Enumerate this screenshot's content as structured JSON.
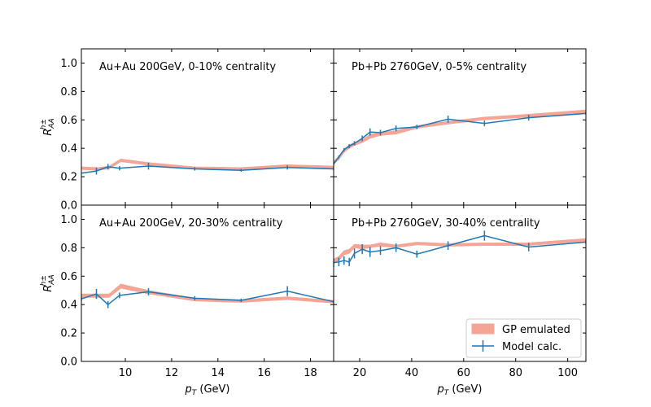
{
  "chart_data": {
    "type": "line",
    "ylabel_base": "R",
    "ylabel_sub": "AA",
    "ylabel_sup": "h±",
    "yticks": [
      "0.0",
      "0.2",
      "0.4",
      "0.6",
      "0.8",
      "1.0"
    ],
    "ylim": [
      0,
      1.1
    ],
    "legend": {
      "placement": "lower-right",
      "gp_label": "GP emulated",
      "model_label": "Model calc."
    },
    "colors": {
      "gp_band": "#f4a595",
      "model_line": "#1f77b4"
    },
    "columns": [
      {
        "xlabel_p": "p",
        "xlabel_sub": "T",
        "xlabel_unit": " (GeV)",
        "xlim": [
          8.1,
          19.0
        ],
        "xticks": [
          10,
          12,
          14,
          16,
          18
        ]
      },
      {
        "xlabel_p": "p",
        "xlabel_sub": "T",
        "xlabel_unit": " (GeV)",
        "xlim": [
          10,
          107
        ],
        "xticks": [
          20,
          40,
          60,
          80,
          100
        ]
      }
    ],
    "panels": [
      {
        "title": "Au+Au 200GeV, 0-10% centrality",
        "col": 0,
        "row": 0,
        "gp": {
          "x": [
            8.1,
            8.8,
            9.3,
            9.8,
            11,
            13,
            15,
            17,
            19
          ],
          "lo": [
            0.25,
            0.245,
            0.255,
            0.305,
            0.28,
            0.255,
            0.25,
            0.265,
            0.255
          ],
          "hi": [
            0.27,
            0.265,
            0.275,
            0.325,
            0.3,
            0.27,
            0.265,
            0.285,
            0.275
          ]
        },
        "model": {
          "x": [
            8.1,
            8.75,
            9.25,
            9.75,
            11,
            13,
            15,
            17,
            19
          ],
          "y": [
            0.225,
            0.24,
            0.27,
            0.26,
            0.275,
            0.255,
            0.245,
            0.265,
            0.255
          ],
          "err": [
            0,
            0.025,
            0.02,
            0.015,
            0.025,
            0.012,
            0.01,
            0.015,
            0.01
          ]
        }
      },
      {
        "title": "Pb+Pb 2760GeV, 0-5% centrality",
        "col": 1,
        "row": 0,
        "gp": {
          "x": [
            10,
            12,
            14,
            16,
            18,
            21,
            24,
            28,
            34,
            42,
            54,
            68,
            85,
            107
          ],
          "lo": [
            0.29,
            0.32,
            0.37,
            0.4,
            0.42,
            0.44,
            0.47,
            0.49,
            0.5,
            0.54,
            0.57,
            0.6,
            0.62,
            0.65
          ],
          "hi": [
            0.31,
            0.345,
            0.395,
            0.425,
            0.44,
            0.46,
            0.5,
            0.51,
            0.525,
            0.56,
            0.59,
            0.62,
            0.64,
            0.67
          ]
        },
        "model": {
          "x": [
            10,
            12,
            14,
            16,
            18,
            21,
            24,
            28,
            34,
            42,
            54,
            68,
            85,
            107
          ],
          "y": [
            0.29,
            0.34,
            0.39,
            0.415,
            0.435,
            0.47,
            0.515,
            0.51,
            0.54,
            0.55,
            0.605,
            0.575,
            0.615,
            0.645
          ],
          "err": [
            0.01,
            0.01,
            0.012,
            0.015,
            0.015,
            0.02,
            0.025,
            0.02,
            0.02,
            0.015,
            0.025,
            0.02,
            0.02,
            0.01
          ]
        }
      },
      {
        "title": "Au+Au 200GeV, 20-30% centrality",
        "col": 0,
        "row": 1,
        "gp": {
          "x": [
            8.1,
            8.8,
            9.3,
            9.8,
            11,
            13,
            15,
            17,
            19
          ],
          "lo": [
            0.45,
            0.45,
            0.45,
            0.515,
            0.475,
            0.425,
            0.415,
            0.435,
            0.41
          ],
          "hi": [
            0.475,
            0.475,
            0.475,
            0.545,
            0.5,
            0.445,
            0.435,
            0.455,
            0.43
          ]
        },
        "model": {
          "x": [
            8.1,
            8.75,
            9.25,
            9.75,
            11,
            13,
            15,
            17,
            19
          ],
          "y": [
            0.44,
            0.475,
            0.4,
            0.465,
            0.49,
            0.445,
            0.43,
            0.495,
            0.42
          ],
          "err": [
            0.015,
            0.035,
            0.025,
            0.02,
            0.025,
            0.015,
            0.012,
            0.035,
            0.01
          ]
        }
      },
      {
        "title": "Pb+Pb 2760GeV, 30-40% centrality",
        "col": 1,
        "row": 1,
        "gp": {
          "x": [
            10,
            12,
            14,
            16,
            18,
            21,
            24,
            28,
            34,
            42,
            54,
            68,
            85,
            107
          ],
          "lo": [
            0.69,
            0.71,
            0.75,
            0.76,
            0.8,
            0.79,
            0.8,
            0.81,
            0.8,
            0.82,
            0.81,
            0.815,
            0.815,
            0.845
          ],
          "hi": [
            0.72,
            0.74,
            0.78,
            0.79,
            0.825,
            0.82,
            0.82,
            0.835,
            0.82,
            0.84,
            0.83,
            0.835,
            0.835,
            0.865
          ]
        },
        "model": {
          "x": [
            10,
            12,
            14,
            16,
            18,
            21,
            24,
            28,
            34,
            42,
            54,
            68,
            85,
            107
          ],
          "y": [
            0.695,
            0.7,
            0.71,
            0.7,
            0.76,
            0.79,
            0.77,
            0.78,
            0.8,
            0.755,
            0.815,
            0.885,
            0.805,
            0.84
          ],
          "err": [
            0.03,
            0.03,
            0.03,
            0.03,
            0.035,
            0.035,
            0.035,
            0.03,
            0.03,
            0.025,
            0.03,
            0.035,
            0.03,
            0.015
          ]
        }
      }
    ]
  }
}
